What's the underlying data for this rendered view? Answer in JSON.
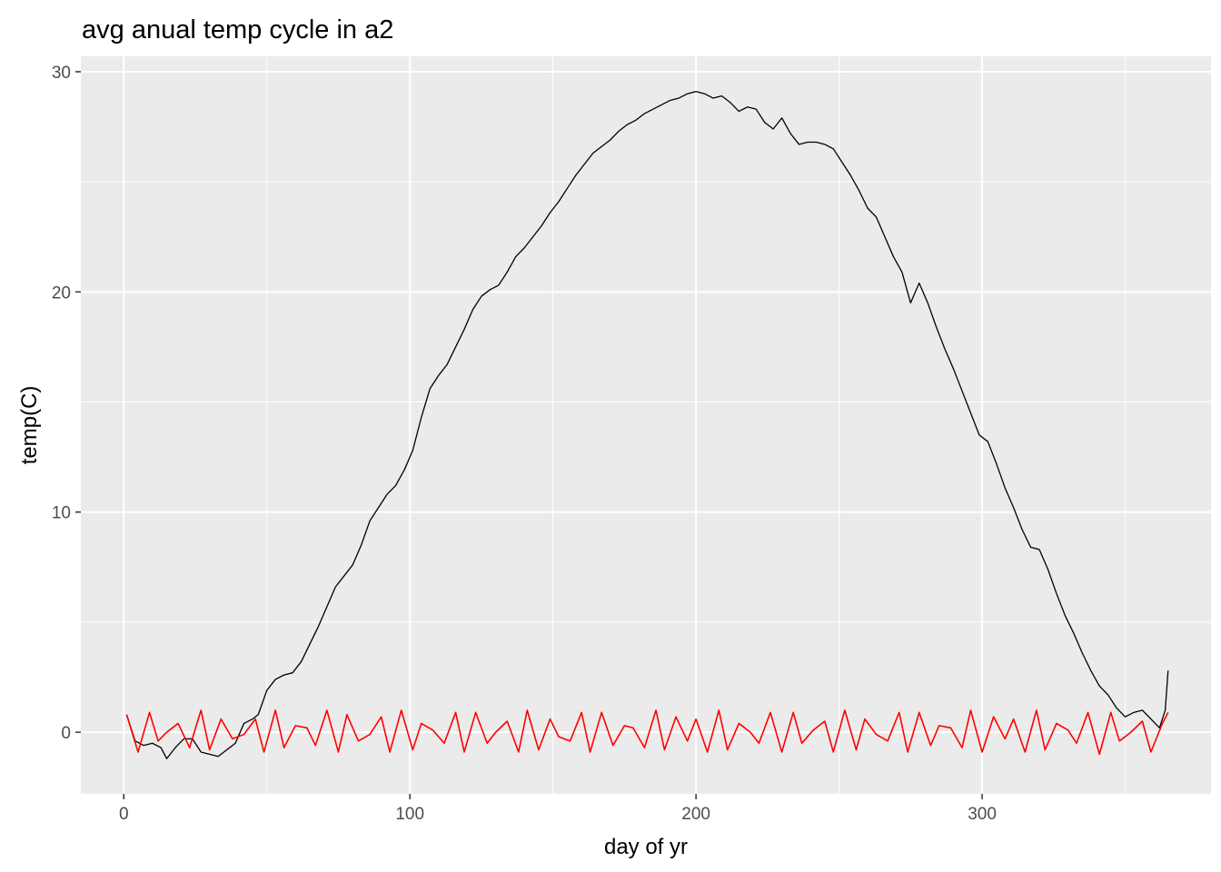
{
  "chart_data": {
    "type": "line",
    "title": "avg anual temp cycle in a2",
    "xlabel": "day of yr",
    "ylabel": "temp(C)",
    "xlim": [
      -15,
      380
    ],
    "ylim": [
      -2.8,
      30.7
    ],
    "x_ticks": [
      0,
      100,
      200,
      300
    ],
    "x_tick_labels": [
      "0",
      "100",
      "200",
      "300"
    ],
    "y_ticks": [
      0,
      10,
      20,
      30
    ],
    "y_tick_labels": [
      "0",
      "10",
      "20",
      "30"
    ],
    "grid": true,
    "legend": "none",
    "series": [
      {
        "color": "#000000",
        "points": [
          [
            1,
            0.8
          ],
          [
            4,
            -0.4
          ],
          [
            7,
            -0.6
          ],
          [
            10,
            -0.5
          ],
          [
            13,
            -0.7
          ],
          [
            15,
            -1.2
          ],
          [
            18,
            -0.7
          ],
          [
            21,
            -0.3
          ],
          [
            24,
            -0.3
          ],
          [
            27,
            -0.9
          ],
          [
            30,
            -1.0
          ],
          [
            33,
            -1.1
          ],
          [
            36,
            -0.8
          ],
          [
            39,
            -0.5
          ],
          [
            42,
            0.4
          ],
          [
            45,
            0.6
          ],
          [
            47,
            0.8
          ],
          [
            50,
            1.9
          ],
          [
            53,
            2.4
          ],
          [
            56,
            2.6
          ],
          [
            59,
            2.7
          ],
          [
            62,
            3.2
          ],
          [
            65,
            4.0
          ],
          [
            68,
            4.8
          ],
          [
            71,
            5.7
          ],
          [
            74,
            6.6
          ],
          [
            77,
            7.1
          ],
          [
            80,
            7.6
          ],
          [
            83,
            8.5
          ],
          [
            86,
            9.6
          ],
          [
            89,
            10.2
          ],
          [
            92,
            10.8
          ],
          [
            95,
            11.2
          ],
          [
            98,
            11.9
          ],
          [
            101,
            12.8
          ],
          [
            104,
            14.3
          ],
          [
            107,
            15.6
          ],
          [
            110,
            16.2
          ],
          [
            113,
            16.7
          ],
          [
            116,
            17.5
          ],
          [
            119,
            18.3
          ],
          [
            122,
            19.2
          ],
          [
            125,
            19.8
          ],
          [
            128,
            20.1
          ],
          [
            131,
            20.3
          ],
          [
            134,
            20.9
          ],
          [
            137,
            21.6
          ],
          [
            140,
            22.0
          ],
          [
            143,
            22.5
          ],
          [
            146,
            23.0
          ],
          [
            149,
            23.6
          ],
          [
            152,
            24.1
          ],
          [
            155,
            24.7
          ],
          [
            158,
            25.3
          ],
          [
            161,
            25.8
          ],
          [
            164,
            26.3
          ],
          [
            167,
            26.6
          ],
          [
            170,
            26.9
          ],
          [
            173,
            27.3
          ],
          [
            176,
            27.6
          ],
          [
            179,
            27.8
          ],
          [
            182,
            28.1
          ],
          [
            185,
            28.3
          ],
          [
            188,
            28.5
          ],
          [
            191,
            28.7
          ],
          [
            194,
            28.8
          ],
          [
            197,
            29.0
          ],
          [
            200,
            29.1
          ],
          [
            203,
            29.0
          ],
          [
            206,
            28.8
          ],
          [
            209,
            28.9
          ],
          [
            212,
            28.6
          ],
          [
            215,
            28.2
          ],
          [
            218,
            28.4
          ],
          [
            221,
            28.3
          ],
          [
            224,
            27.7
          ],
          [
            227,
            27.4
          ],
          [
            230,
            27.9
          ],
          [
            233,
            27.2
          ],
          [
            236,
            26.7
          ],
          [
            239,
            26.8
          ],
          [
            242,
            26.8
          ],
          [
            245,
            26.7
          ],
          [
            248,
            26.5
          ],
          [
            251,
            25.9
          ],
          [
            254,
            25.3
          ],
          [
            257,
            24.6
          ],
          [
            260,
            23.8
          ],
          [
            263,
            23.4
          ],
          [
            266,
            22.5
          ],
          [
            269,
            21.6
          ],
          [
            272,
            20.9
          ],
          [
            275,
            19.5
          ],
          [
            278,
            20.4
          ],
          [
            281,
            19.5
          ],
          [
            284,
            18.4
          ],
          [
            287,
            17.4
          ],
          [
            290,
            16.5
          ],
          [
            293,
            15.5
          ],
          [
            296,
            14.5
          ],
          [
            299,
            13.5
          ],
          [
            302,
            13.2
          ],
          [
            305,
            12.2
          ],
          [
            308,
            11.1
          ],
          [
            311,
            10.2
          ],
          [
            314,
            9.2
          ],
          [
            317,
            8.4
          ],
          [
            320,
            8.3
          ],
          [
            323,
            7.4
          ],
          [
            326,
            6.3
          ],
          [
            329,
            5.3
          ],
          [
            332,
            4.5
          ],
          [
            335,
            3.6
          ],
          [
            338,
            2.8
          ],
          [
            341,
            2.1
          ],
          [
            344,
            1.7
          ],
          [
            347,
            1.1
          ],
          [
            350,
            0.7
          ],
          [
            353,
            0.9
          ],
          [
            356,
            1.0
          ],
          [
            359,
            0.6
          ],
          [
            362,
            0.2
          ],
          [
            364,
            1.0
          ],
          [
            365,
            2.8
          ]
        ]
      },
      {
        "color": "#ff0000",
        "points": [
          [
            1,
            0.8
          ],
          [
            5,
            -0.9
          ],
          [
            9,
            0.9
          ],
          [
            12,
            -0.4
          ],
          [
            15,
            0.0
          ],
          [
            19,
            0.4
          ],
          [
            23,
            -0.7
          ],
          [
            27,
            1.0
          ],
          [
            30,
            -0.8
          ],
          [
            34,
            0.6
          ],
          [
            38,
            -0.3
          ],
          [
            42,
            -0.1
          ],
          [
            46,
            0.6
          ],
          [
            49,
            -0.9
          ],
          [
            53,
            1.0
          ],
          [
            56,
            -0.7
          ],
          [
            60,
            0.3
          ],
          [
            64,
            0.2
          ],
          [
            67,
            -0.6
          ],
          [
            71,
            1.0
          ],
          [
            75,
            -0.9
          ],
          [
            78,
            0.8
          ],
          [
            82,
            -0.4
          ],
          [
            86,
            -0.1
          ],
          [
            90,
            0.7
          ],
          [
            93,
            -0.9
          ],
          [
            97,
            1.0
          ],
          [
            101,
            -0.8
          ],
          [
            104,
            0.4
          ],
          [
            108,
            0.1
          ],
          [
            112,
            -0.5
          ],
          [
            116,
            0.9
          ],
          [
            119,
            -0.9
          ],
          [
            123,
            0.9
          ],
          [
            127,
            -0.5
          ],
          [
            130,
            0.0
          ],
          [
            134,
            0.5
          ],
          [
            138,
            -0.9
          ],
          [
            141,
            1.0
          ],
          [
            145,
            -0.8
          ],
          [
            149,
            0.6
          ],
          [
            152,
            -0.2
          ],
          [
            156,
            -0.4
          ],
          [
            160,
            0.9
          ],
          [
            163,
            -0.9
          ],
          [
            167,
            0.9
          ],
          [
            171,
            -0.6
          ],
          [
            175,
            0.3
          ],
          [
            178,
            0.2
          ],
          [
            182,
            -0.7
          ],
          [
            186,
            1.0
          ],
          [
            189,
            -0.8
          ],
          [
            193,
            0.7
          ],
          [
            197,
            -0.4
          ],
          [
            200,
            0.6
          ],
          [
            204,
            -0.9
          ],
          [
            208,
            1.0
          ],
          [
            211,
            -0.8
          ],
          [
            215,
            0.4
          ],
          [
            219,
            0.0
          ],
          [
            222,
            -0.5
          ],
          [
            226,
            0.9
          ],
          [
            230,
            -0.9
          ],
          [
            234,
            0.9
          ],
          [
            237,
            -0.5
          ],
          [
            241,
            0.1
          ],
          [
            245,
            0.5
          ],
          [
            248,
            -0.9
          ],
          [
            252,
            1.0
          ],
          [
            256,
            -0.8
          ],
          [
            259,
            0.6
          ],
          [
            263,
            -0.1
          ],
          [
            267,
            -0.4
          ],
          [
            271,
            0.9
          ],
          [
            274,
            -0.9
          ],
          [
            278,
            0.9
          ],
          [
            282,
            -0.6
          ],
          [
            285,
            0.3
          ],
          [
            289,
            0.2
          ],
          [
            293,
            -0.7
          ],
          [
            296,
            1.0
          ],
          [
            300,
            -0.9
          ],
          [
            304,
            0.7
          ],
          [
            308,
            -0.3
          ],
          [
            311,
            0.6
          ],
          [
            315,
            -0.9
          ],
          [
            319,
            1.0
          ],
          [
            322,
            -0.8
          ],
          [
            326,
            0.4
          ],
          [
            330,
            0.1
          ],
          [
            333,
            -0.5
          ],
          [
            337,
            0.9
          ],
          [
            341,
            -1.0
          ],
          [
            345,
            0.9
          ],
          [
            348,
            -0.4
          ],
          [
            352,
            0.0
          ],
          [
            356,
            0.5
          ],
          [
            359,
            -0.9
          ],
          [
            363,
            0.4
          ],
          [
            365,
            0.9
          ]
        ]
      }
    ]
  }
}
